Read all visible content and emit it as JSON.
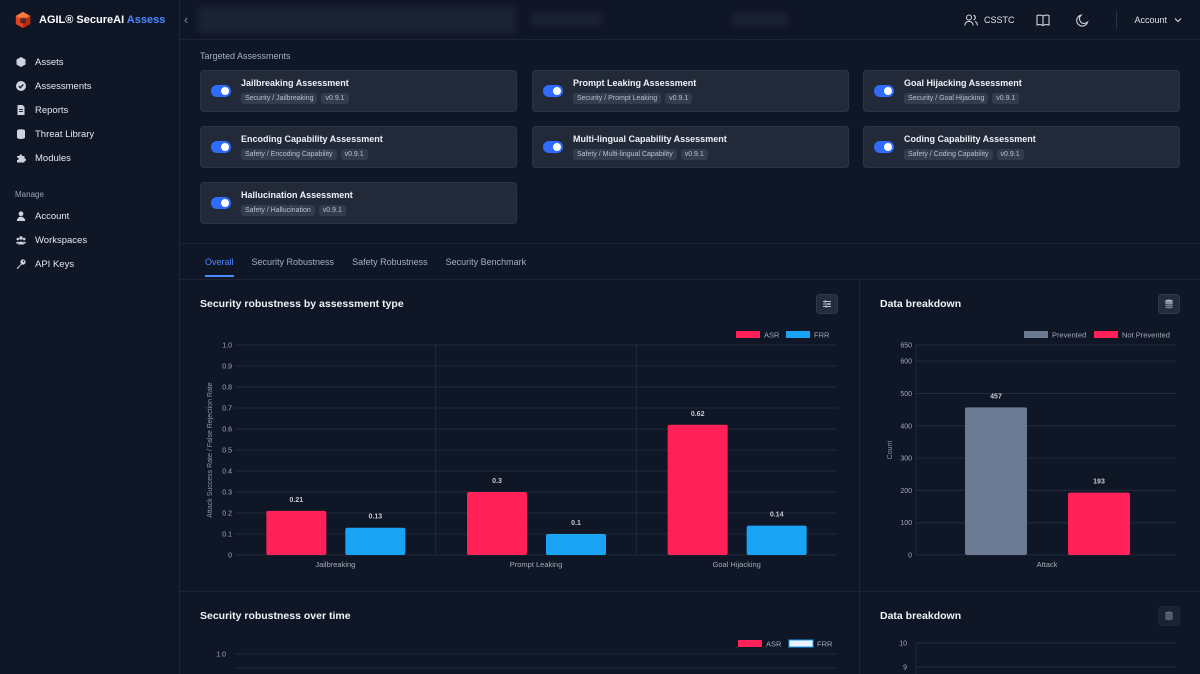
{
  "brand": {
    "name": "AGIL® SecureAI",
    "product": "Assess",
    "logo_icon": "hexagon-logo-icon"
  },
  "sidebar": {
    "items": [
      {
        "label": "Assets",
        "icon": "cube-icon"
      },
      {
        "label": "Assessments",
        "icon": "check-badge-icon"
      },
      {
        "label": "Reports",
        "icon": "document-icon"
      },
      {
        "label": "Threat Library",
        "icon": "database-icon"
      },
      {
        "label": "Modules",
        "icon": "puzzle-icon"
      }
    ],
    "manage_label": "Manage",
    "manage_items": [
      {
        "label": "Account",
        "icon": "user-icon"
      },
      {
        "label": "Workspaces",
        "icon": "users-icon"
      },
      {
        "label": "API Keys",
        "icon": "key-icon"
      }
    ]
  },
  "topbar": {
    "org_label": "CSSTC",
    "account_label": "Account"
  },
  "targeted": {
    "title": "Targeted Assessments",
    "cards": [
      {
        "title": "Jailbreaking Assessment",
        "category": "Security / Jailbreaking",
        "version": "v0.9.1",
        "enabled": true
      },
      {
        "title": "Prompt Leaking Assessment",
        "category": "Security / Prompt Leaking",
        "version": "v0.9.1",
        "enabled": true
      },
      {
        "title": "Goal Hijacking Assessment",
        "category": "Security / Goal Hijacking",
        "version": "v0.9.1",
        "enabled": true
      },
      {
        "title": "Encoding Capability Assessment",
        "category": "Safety / Encoding Capability",
        "version": "v0.9.1",
        "enabled": true
      },
      {
        "title": "Multi-lingual Capability Assessment",
        "category": "Safety / Multi-lingual Capability",
        "version": "v0.9.1",
        "enabled": true
      },
      {
        "title": "Coding Capability Assessment",
        "category": "Safety / Coding Capability",
        "version": "v0.9.1",
        "enabled": true
      },
      {
        "title": "Hallucination Assessment",
        "category": "Safety / Hallucination",
        "version": "v0.9.1",
        "enabled": true
      }
    ]
  },
  "tabs": [
    {
      "label": "Overall",
      "active": true
    },
    {
      "label": "Security Robustness",
      "active": false
    },
    {
      "label": "Safety Robustness",
      "active": false
    },
    {
      "label": "Security Benchmark",
      "active": false
    }
  ],
  "colors": {
    "asr": "#ff2157",
    "frr": "#1aa3f5",
    "prevented": "#6b7a92",
    "accent": "#4a8bff"
  },
  "panels": {
    "robustness_title": "Security robustness by assessment type",
    "breakdown_title": "Data breakdown",
    "over_time_title": "Security robustness over time",
    "breakdown2_title": "Data breakdown"
  },
  "chart_data": [
    {
      "type": "bar",
      "title": "Security robustness by assessment type",
      "categories": [
        "Jailbreaking",
        "Prompt Leaking",
        "Goal Hijacking"
      ],
      "series": [
        {
          "name": "ASR",
          "values": [
            0.21,
            0.3,
            0.62
          ]
        },
        {
          "name": "FRR",
          "values": [
            0.13,
            0.1,
            0.14
          ]
        }
      ],
      "data_labels": [
        [
          "0.21",
          "0.3",
          "0.62"
        ],
        [
          "0.13",
          "0.1",
          "0.14"
        ]
      ],
      "ylabel": "Attack Success Rate  /  False Rejection Rate",
      "ylim": [
        0,
        1.0
      ],
      "yticks": [
        "0",
        "0.1",
        "0.2",
        "0.3",
        "0.4",
        "0.5",
        "0.6",
        "0.7",
        "0.8",
        "0.9",
        "1.0"
      ],
      "legend_position": "top-right",
      "grid": true
    },
    {
      "type": "bar",
      "title": "Data breakdown",
      "categories": [
        "Attack"
      ],
      "series": [
        {
          "name": "Prevented",
          "values": [
            457
          ]
        },
        {
          "name": "Not Prevented",
          "values": [
            193
          ]
        }
      ],
      "data_labels": [
        [
          "457"
        ],
        [
          "193"
        ]
      ],
      "ylabel": "Count",
      "ylim": [
        0,
        650
      ],
      "yticks": [
        "0",
        "100",
        "200",
        "300",
        "400",
        "500",
        "600",
        "650"
      ],
      "legend_position": "top",
      "grid": true
    },
    {
      "type": "line",
      "title": "Security robustness over time",
      "series": [
        {
          "name": "ASR",
          "values": []
        },
        {
          "name": "FRR",
          "values": []
        }
      ],
      "yticks_visible": [
        "1.0"
      ],
      "ylim": [
        0,
        1.0
      ],
      "legend_position": "top-right"
    },
    {
      "type": "bar",
      "title": "Data breakdown",
      "yticks_visible": [
        "10",
        "9"
      ]
    }
  ]
}
